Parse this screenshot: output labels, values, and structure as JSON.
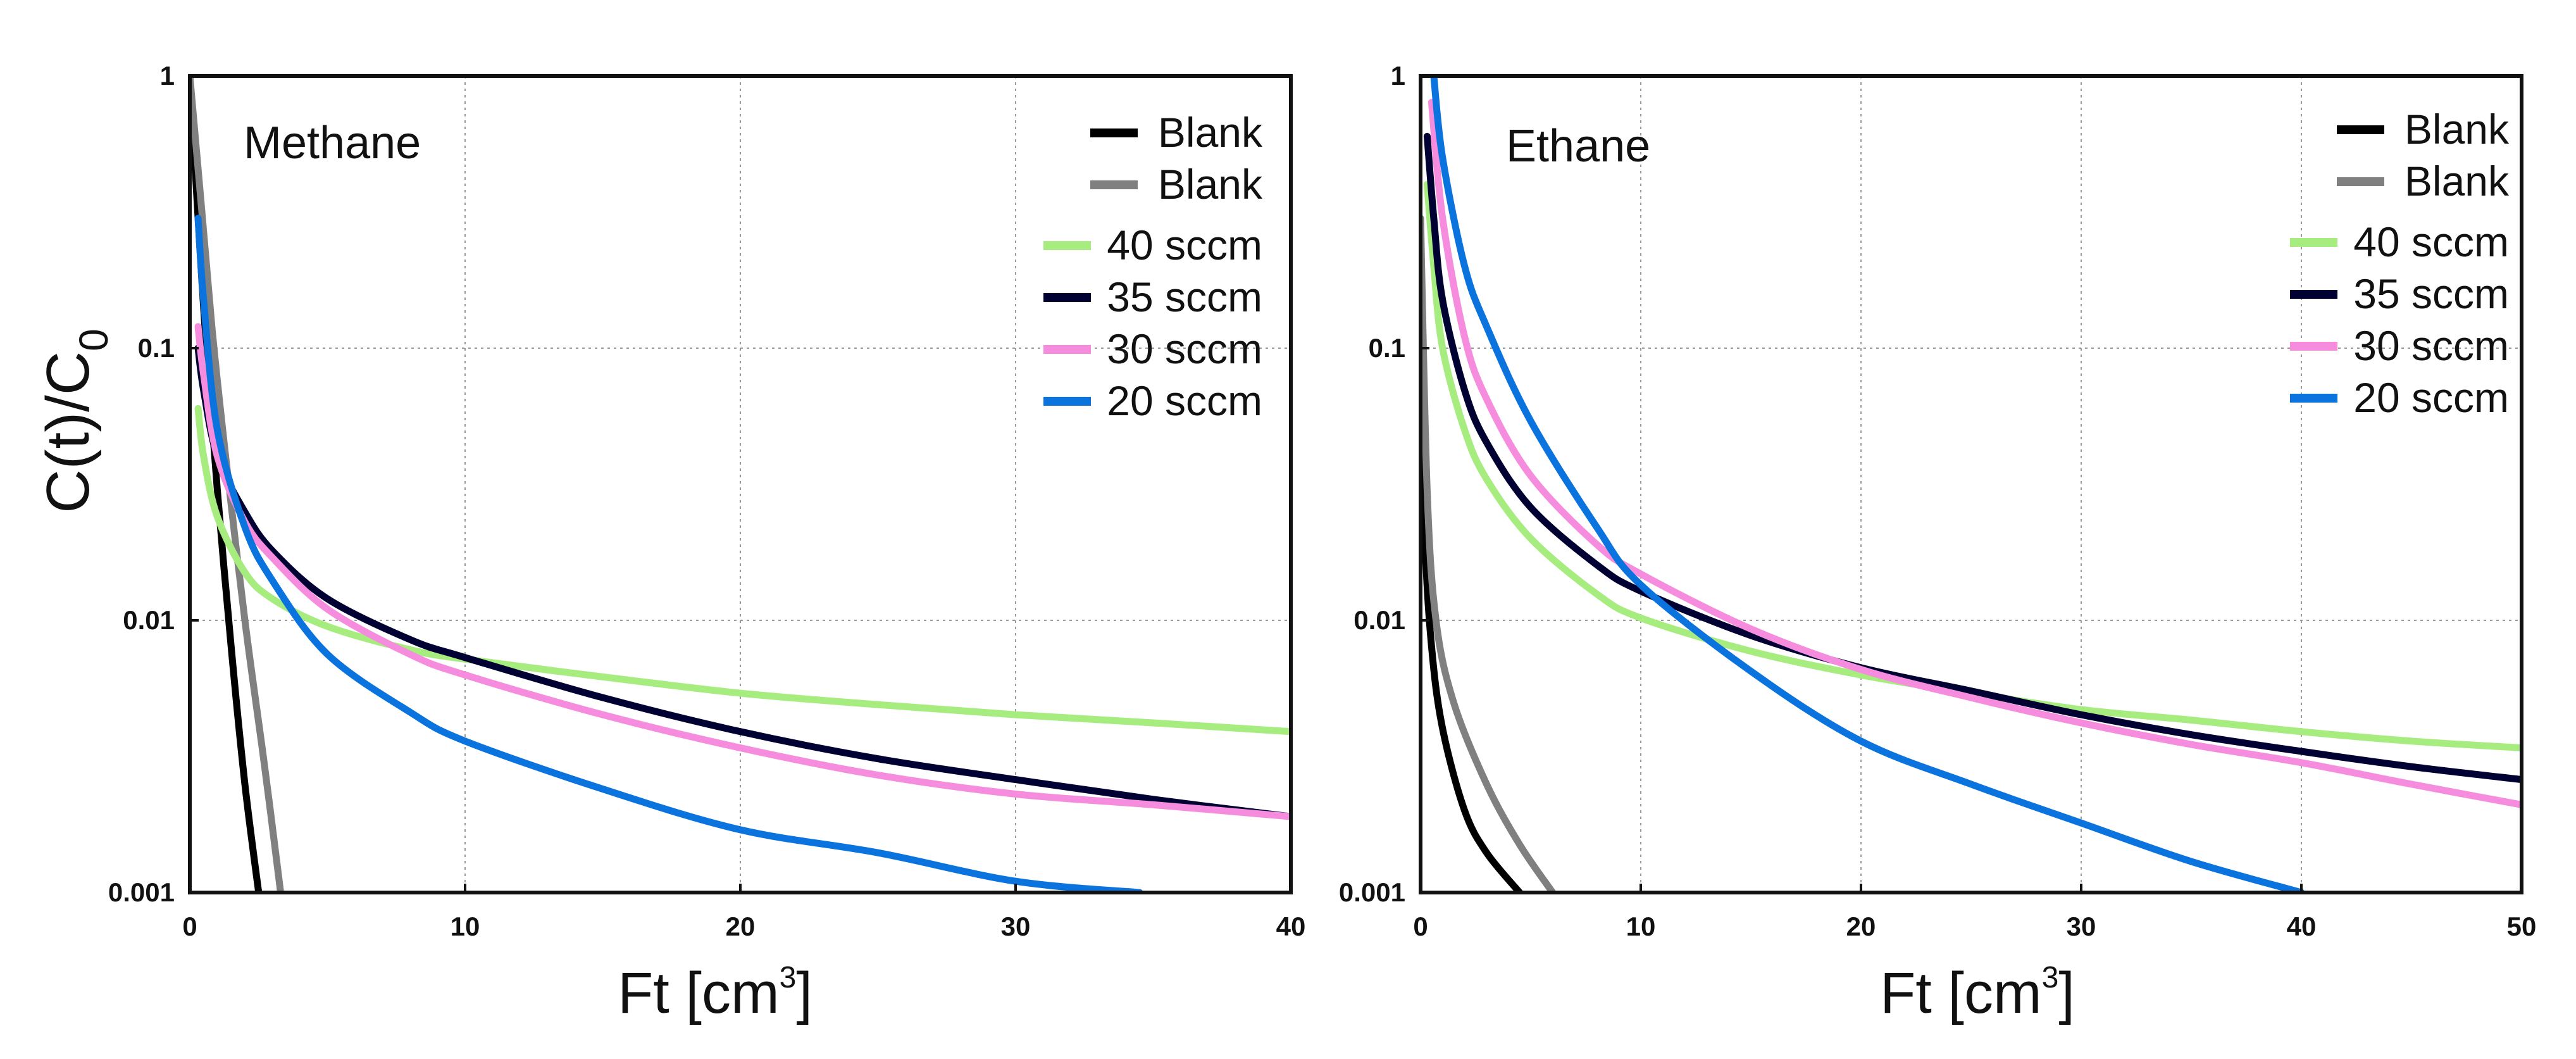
{
  "chart_data": [
    {
      "type": "line",
      "panel_label": "Methane",
      "xlabel_base": "Ft [cm",
      "xlabel_sup": "3",
      "xlabel_close": "]",
      "ylabel_base": "C(t)/C",
      "ylabel_sub": "0",
      "y_scale": "log",
      "xlim": [
        0,
        40
      ],
      "ylim": [
        0.001,
        1
      ],
      "x_ticks": [
        "0",
        "10",
        "20",
        "30",
        "40"
      ],
      "y_ticks": [
        "0.001",
        "0.01",
        "0.1",
        "1"
      ],
      "grid": true,
      "legend_position": "top-right",
      "series": [
        {
          "name": "Blank",
          "color": "#000000",
          "x": [
            0,
            0.3,
            0.6,
            1.0,
            1.5,
            2.0,
            2.5
          ],
          "y": [
            1.0,
            0.3,
            0.1,
            0.03,
            0.008,
            0.0025,
            0.001
          ]
        },
        {
          "name": "Blank",
          "color": "#808080",
          "x": [
            0,
            0.4,
            0.8,
            1.3,
            2.0,
            2.7,
            3.3
          ],
          "y": [
            1.0,
            0.35,
            0.12,
            0.04,
            0.01,
            0.003,
            0.001
          ]
        },
        {
          "name": "40 sccm",
          "color": "#a6ec7e",
          "x": [
            0.3,
            0.5,
            1,
            2,
            3,
            5,
            8,
            10,
            15,
            20,
            25,
            30,
            35,
            40
          ],
          "y": [
            0.06,
            0.04,
            0.024,
            0.015,
            0.012,
            0.0095,
            0.0078,
            0.0072,
            0.0062,
            0.0054,
            0.0049,
            0.0045,
            0.0042,
            0.0039
          ]
        },
        {
          "name": "35 sccm",
          "color": "#000033",
          "x": [
            0.3,
            0.5,
            1,
            2,
            3,
            5,
            8,
            10,
            15,
            20,
            25,
            30,
            35,
            40
          ],
          "y": [
            0.1,
            0.07,
            0.04,
            0.025,
            0.018,
            0.012,
            0.0085,
            0.0073,
            0.0052,
            0.0039,
            0.0031,
            0.0026,
            0.0022,
            0.0019
          ]
        },
        {
          "name": "30 sccm",
          "color": "#f58cdd",
          "x": [
            0.3,
            0.5,
            1,
            2,
            3,
            5,
            8,
            10,
            15,
            20,
            25,
            30,
            35,
            40
          ],
          "y": [
            0.12,
            0.08,
            0.04,
            0.023,
            0.017,
            0.011,
            0.0075,
            0.0063,
            0.0045,
            0.0034,
            0.0027,
            0.0023,
            0.0021,
            0.0019
          ]
        },
        {
          "name": "20 sccm",
          "color": "#0a73de",
          "x": [
            0.3,
            0.5,
            1,
            2,
            3,
            5,
            8,
            10,
            15,
            20,
            25,
            30,
            34.5
          ],
          "y": [
            0.3,
            0.15,
            0.05,
            0.022,
            0.014,
            0.0075,
            0.0046,
            0.0036,
            0.0024,
            0.0017,
            0.0014,
            0.0011,
            0.001
          ]
        }
      ]
    },
    {
      "type": "line",
      "panel_label": "Ethane",
      "xlabel_base": "Ft [cm",
      "xlabel_sup": "3",
      "xlabel_close": "]",
      "ylabel_base": "",
      "ylabel_sub": "",
      "y_scale": "log",
      "xlim": [
        0,
        50
      ],
      "ylim": [
        0.001,
        1
      ],
      "x_ticks": [
        "0",
        "10",
        "20",
        "30",
        "40",
        "50"
      ],
      "y_ticks": [
        "0.001",
        "0.01",
        "0.1",
        "1"
      ],
      "grid": true,
      "legend_position": "top-right",
      "series": [
        {
          "name": "Blank",
          "color": "#000000",
          "x": [
            0,
            0.2,
            0.5,
            1.0,
            2.0,
            3.0,
            4.5
          ],
          "y": [
            0.1,
            0.02,
            0.008,
            0.004,
            0.002,
            0.0014,
            0.001
          ]
        },
        {
          "name": "Blank",
          "color": "#808080",
          "x": [
            0,
            0.3,
            0.7,
            1.5,
            3.0,
            4.5,
            6.0
          ],
          "y": [
            0.3,
            0.03,
            0.01,
            0.005,
            0.0025,
            0.0015,
            0.001
          ]
        },
        {
          "name": "40 sccm",
          "color": "#a6ec7e",
          "x": [
            0.3,
            0.6,
            1,
            2,
            3,
            5,
            8,
            10,
            15,
            20,
            25,
            30,
            35,
            40,
            45,
            50
          ],
          "y": [
            0.4,
            0.2,
            0.1,
            0.05,
            0.033,
            0.02,
            0.0125,
            0.0102,
            0.0077,
            0.0063,
            0.0054,
            0.0047,
            0.0043,
            0.0039,
            0.0036,
            0.0034
          ]
        },
        {
          "name": "35 sccm",
          "color": "#000033",
          "x": [
            0.3,
            0.6,
            1,
            2,
            3,
            5,
            8,
            10,
            15,
            20,
            25,
            30,
            35,
            40,
            45,
            50
          ],
          "y": [
            0.6,
            0.3,
            0.15,
            0.07,
            0.045,
            0.026,
            0.016,
            0.0128,
            0.0088,
            0.0067,
            0.0055,
            0.0045,
            0.0038,
            0.0033,
            0.0029,
            0.0026
          ]
        },
        {
          "name": "30 sccm",
          "color": "#f58cdd",
          "x": [
            0.5,
            1,
            2,
            3,
            5,
            8,
            10,
            15,
            20,
            25,
            30,
            35,
            40,
            45,
            50
          ],
          "y": [
            0.8,
            0.3,
            0.11,
            0.065,
            0.034,
            0.019,
            0.0148,
            0.0093,
            0.0066,
            0.0052,
            0.0042,
            0.0035,
            0.003,
            0.0025,
            0.0021
          ]
        },
        {
          "name": "20 sccm",
          "color": "#0a73de",
          "x": [
            0.6,
            1,
            2,
            3,
            5,
            8,
            10,
            15,
            20,
            25,
            30,
            35,
            40
          ],
          "y": [
            1.0,
            0.5,
            0.2,
            0.12,
            0.054,
            0.022,
            0.0135,
            0.0065,
            0.0036,
            0.0025,
            0.0018,
            0.0013,
            0.001
          ]
        }
      ]
    }
  ]
}
